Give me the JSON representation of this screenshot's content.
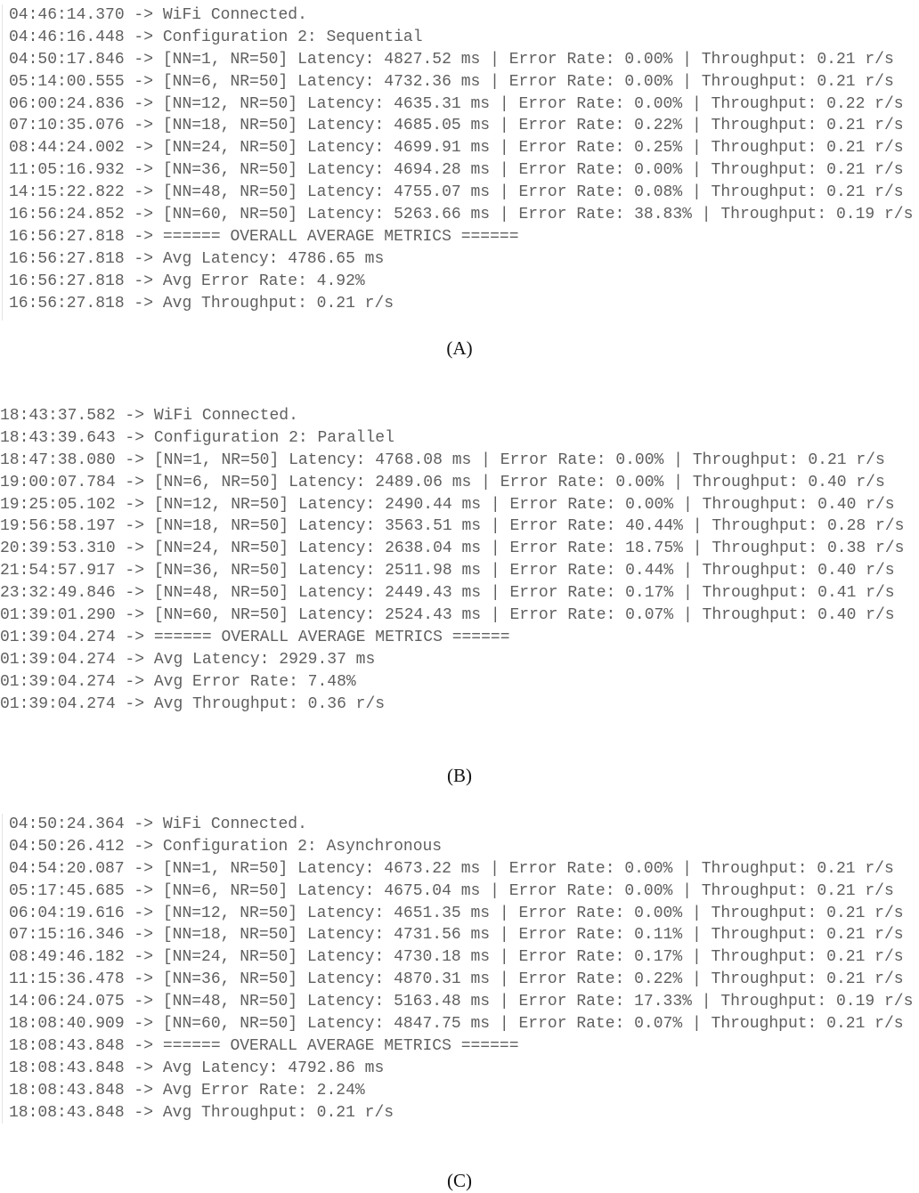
{
  "panels": [
    {
      "caption": "(A)",
      "lines": [
        {
          "time": "04:46:14.370",
          "msg": "WiFi Connected."
        },
        {
          "time": "04:46:16.448",
          "msg": "Configuration 2: Sequential"
        },
        {
          "time": "04:50:17.846",
          "msg": "[NN=1, NR=50] Latency: 4827.52 ms | Error Rate: 0.00% | Throughput: 0.21 r/s"
        },
        {
          "time": "05:14:00.555",
          "msg": "[NN=6, NR=50] Latency: 4732.36 ms | Error Rate: 0.00% | Throughput: 0.21 r/s"
        },
        {
          "time": "06:00:24.836",
          "msg": "[NN=12, NR=50] Latency: 4635.31 ms | Error Rate: 0.00% | Throughput: 0.22 r/s"
        },
        {
          "time": "07:10:35.076",
          "msg": "[NN=18, NR=50] Latency: 4685.05 ms | Error Rate: 0.22% | Throughput: 0.21 r/s"
        },
        {
          "time": "08:44:24.002",
          "msg": "[NN=24, NR=50] Latency: 4699.91 ms | Error Rate: 0.25% | Throughput: 0.21 r/s"
        },
        {
          "time": "11:05:16.932",
          "msg": "[NN=36, NR=50] Latency: 4694.28 ms | Error Rate: 0.00% | Throughput: 0.21 r/s"
        },
        {
          "time": "14:15:22.822",
          "msg": "[NN=48, NR=50] Latency: 4755.07 ms | Error Rate: 0.08% | Throughput: 0.21 r/s"
        },
        {
          "time": "16:56:24.852",
          "msg": "[NN=60, NR=50] Latency: 5263.66 ms | Error Rate: 38.83% | Throughput: 0.19 r/s"
        },
        {
          "time": "16:56:27.818",
          "msg": "====== OVERALL AVERAGE METRICS ======"
        },
        {
          "time": "16:56:27.818",
          "msg": "Avg Latency: 4786.65 ms"
        },
        {
          "time": "16:56:27.818",
          "msg": "Avg Error Rate: 4.92%"
        },
        {
          "time": "16:56:27.818",
          "msg": "Avg Throughput: 0.21 r/s"
        }
      ]
    },
    {
      "caption": "(B)",
      "lines": [
        {
          "time": "18:43:37.582",
          "msg": "WiFi Connected."
        },
        {
          "time": "18:43:39.643",
          "msg": "Configuration 2: Parallel"
        },
        {
          "time": "18:47:38.080",
          "msg": "[NN=1, NR=50] Latency: 4768.08 ms | Error Rate: 0.00% | Throughput: 0.21 r/s"
        },
        {
          "time": "19:00:07.784",
          "msg": "[NN=6, NR=50] Latency: 2489.06 ms | Error Rate: 0.00% | Throughput: 0.40 r/s"
        },
        {
          "time": "19:25:05.102",
          "msg": "[NN=12, NR=50] Latency: 2490.44 ms | Error Rate: 0.00% | Throughput: 0.40 r/s"
        },
        {
          "time": "19:56:58.197",
          "msg": "[NN=18, NR=50] Latency: 3563.51 ms | Error Rate: 40.44% | Throughput: 0.28 r/s"
        },
        {
          "time": "20:39:53.310",
          "msg": "[NN=24, NR=50] Latency: 2638.04 ms | Error Rate: 18.75% | Throughput: 0.38 r/s"
        },
        {
          "time": "21:54:57.917",
          "msg": "[NN=36, NR=50] Latency: 2511.98 ms | Error Rate: 0.44% | Throughput: 0.40 r/s"
        },
        {
          "time": "23:32:49.846",
          "msg": "[NN=48, NR=50] Latency: 2449.43 ms | Error Rate: 0.17% | Throughput: 0.41 r/s"
        },
        {
          "time": "01:39:01.290",
          "msg": "[NN=60, NR=50] Latency: 2524.43 ms | Error Rate: 0.07% | Throughput: 0.40 r/s"
        },
        {
          "time": "01:39:04.274",
          "msg": "====== OVERALL AVERAGE METRICS ======"
        },
        {
          "time": "01:39:04.274",
          "msg": "Avg Latency: 2929.37 ms"
        },
        {
          "time": "01:39:04.274",
          "msg": "Avg Error Rate: 7.48%"
        },
        {
          "time": "01:39:04.274",
          "msg": "Avg Throughput: 0.36 r/s"
        }
      ]
    },
    {
      "caption": "(C)",
      "lines": [
        {
          "time": "04:50:24.364",
          "msg": "WiFi Connected."
        },
        {
          "time": "04:50:26.412",
          "msg": "Configuration 2: Asynchronous"
        },
        {
          "time": "04:54:20.087",
          "msg": "[NN=1, NR=50] Latency: 4673.22 ms | Error Rate: 0.00% | Throughput: 0.21 r/s"
        },
        {
          "time": "05:17:45.685",
          "msg": "[NN=6, NR=50] Latency: 4675.04 ms | Error Rate: 0.00% | Throughput: 0.21 r/s"
        },
        {
          "time": "06:04:19.616",
          "msg": "[NN=12, NR=50] Latency: 4651.35 ms | Error Rate: 0.00% | Throughput: 0.21 r/s"
        },
        {
          "time": "07:15:16.346",
          "msg": "[NN=18, NR=50] Latency: 4731.56 ms | Error Rate: 0.11% | Throughput: 0.21 r/s"
        },
        {
          "time": "08:49:46.182",
          "msg": "[NN=24, NR=50] Latency: 4730.18 ms | Error Rate: 0.17% | Throughput: 0.21 r/s"
        },
        {
          "time": "11:15:36.478",
          "msg": "[NN=36, NR=50] Latency: 4870.31 ms | Error Rate: 0.22% | Throughput: 0.21 r/s"
        },
        {
          "time": "14:06:24.075",
          "msg": "[NN=48, NR=50] Latency: 5163.48 ms | Error Rate: 17.33% | Throughput: 0.19 r/s"
        },
        {
          "time": "18:08:40.909",
          "msg": "[NN=60, NR=50] Latency: 4847.75 ms | Error Rate: 0.07% | Throughput: 0.21 r/s"
        },
        {
          "time": "18:08:43.848",
          "msg": "====== OVERALL AVERAGE METRICS ======"
        },
        {
          "time": "18:08:43.848",
          "msg": "Avg Latency: 4792.86 ms"
        },
        {
          "time": "18:08:43.848",
          "msg": "Avg Error Rate: 2.24%"
        },
        {
          "time": "18:08:43.848",
          "msg": "Avg Throughput: 0.21 r/s"
        }
      ]
    }
  ],
  "arrow": " -> "
}
